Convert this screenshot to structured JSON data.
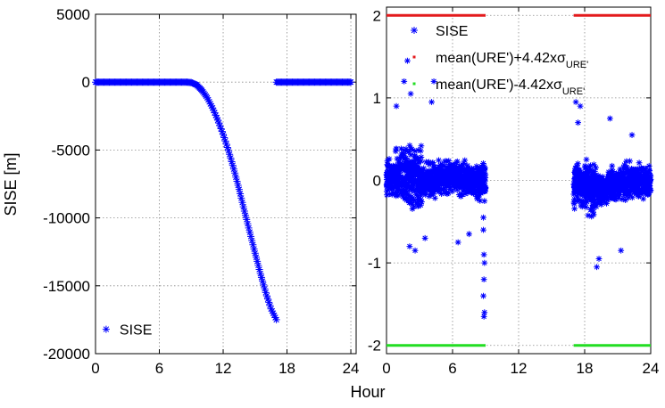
{
  "colors": {
    "series_blue": "#0000ff",
    "upper_red": "#e31a1c",
    "lower_green": "#22dd22"
  },
  "xlabel_shared": "Hour",
  "chart_data": [
    {
      "type": "scatter",
      "ylabel": "SISE [m]",
      "xlim": [
        0,
        24.5
      ],
      "ylim": [
        -20000,
        5000
      ],
      "xticks": [
        "0",
        "6",
        "12",
        "18",
        "24"
      ],
      "yticks": [
        "5000",
        "0",
        "-5000",
        "-10000",
        "-15000",
        "-20000"
      ],
      "grid": true,
      "legend_position": "bottom-left",
      "marker": "*",
      "series": [
        {
          "name": "SISE",
          "segments": [
            {
              "x": [
                0,
                8.5,
                9,
                9.5,
                10,
                10.5,
                11,
                11.5,
                12,
                12.5,
                13,
                13.5,
                14,
                14.5,
                15,
                15.5,
                16,
                16.5,
                17
              ],
              "y": [
                0,
                0,
                -30,
                -200,
                -600,
                -1150,
                -1900,
                -2800,
                -3850,
                -5050,
                -6400,
                -7900,
                -9500,
                -11050,
                -12600,
                -14100,
                -15500,
                -16700,
                -17500
              ]
            },
            {
              "x": [
                17,
                24
              ],
              "y": [
                0,
                0
              ]
            }
          ]
        }
      ]
    },
    {
      "type": "scatter",
      "xlim": [
        0,
        24
      ],
      "ylim": [
        -2.1,
        2.1
      ],
      "xticks": [
        "0",
        "6",
        "12",
        "18",
        "24"
      ],
      "yticks": [
        "2",
        "1",
        "0",
        "-1",
        "-2"
      ],
      "grid": true,
      "legend_position": "top-right",
      "legend": [
        "SISE",
        "mean(URE')+4.42xσ",
        "mean(URE')-4.42xσ"
      ],
      "legend_subscript": "URE'",
      "series": [
        {
          "name": "SISE",
          "marker": "*",
          "segments": [
            {
              "x_range": [
                0,
                9
              ],
              "y_typical_range": [
                -0.8,
                0.5
              ],
              "y_max": 1.45,
              "tail_y_min": -1.65
            },
            {
              "x_range": [
                17,
                24
              ],
              "y_typical_range": [
                -0.7,
                0.6
              ],
              "y_max": 0.95,
              "y_min": -1.05
            }
          ]
        },
        {
          "name": "mean(URE')+4.42xσ",
          "y": 2.0,
          "x_segments": [
            [
              0,
              9
            ],
            [
              17,
              24
            ]
          ]
        },
        {
          "name": "mean(URE')-4.42xσ",
          "y": -2.0,
          "x_segments": [
            [
              0,
              9
            ],
            [
              17,
              24
            ]
          ]
        }
      ]
    }
  ]
}
